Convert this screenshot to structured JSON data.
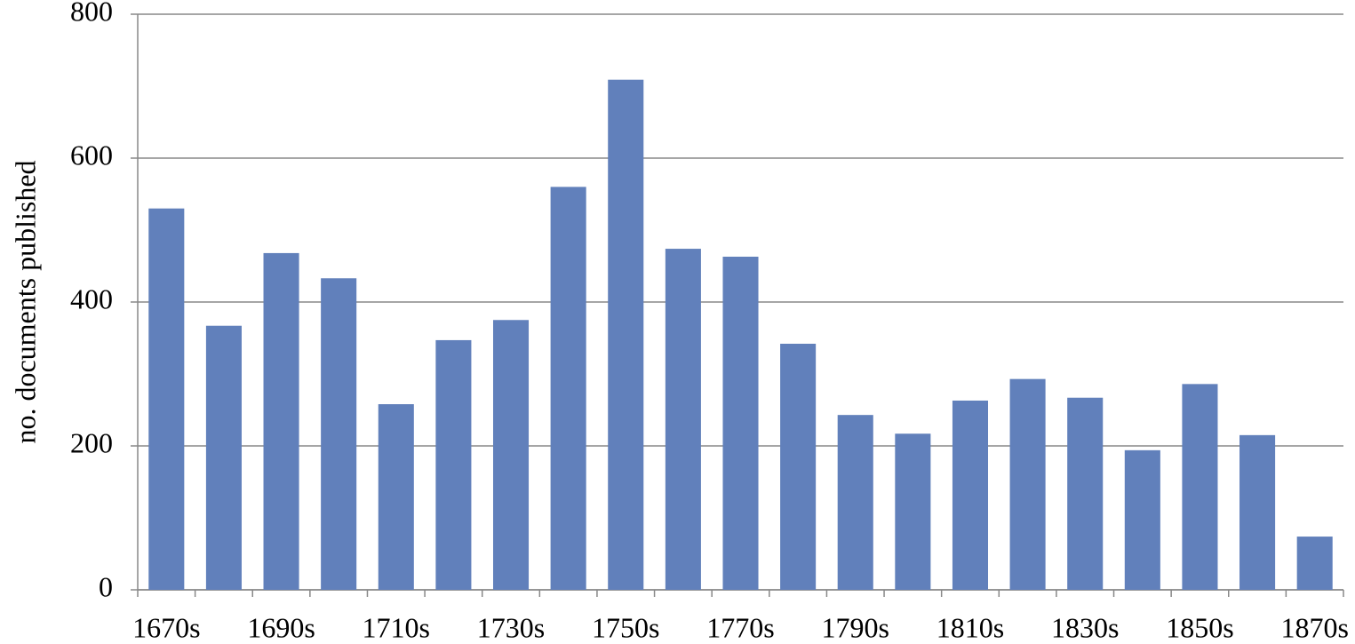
{
  "chart_data": {
    "type": "bar",
    "y_label": "no. documents published",
    "categories": [
      "1670s",
      null,
      "1690s",
      null,
      "1710s",
      null,
      "1730s",
      null,
      "1750s",
      null,
      "1770s",
      null,
      "1790s",
      null,
      "1810s",
      null,
      "1830s",
      null,
      "1850s",
      null,
      "1870s"
    ],
    "values": [
      530,
      367,
      468,
      433,
      258,
      347,
      375,
      560,
      709,
      474,
      463,
      342,
      243,
      217,
      263,
      293,
      267,
      194,
      286,
      215,
      74
    ],
    "color": "#6180bb",
    "ylim": [
      0,
      800
    ],
    "yticks": [
      0,
      200,
      400,
      600,
      800
    ],
    "grid": true
  }
}
